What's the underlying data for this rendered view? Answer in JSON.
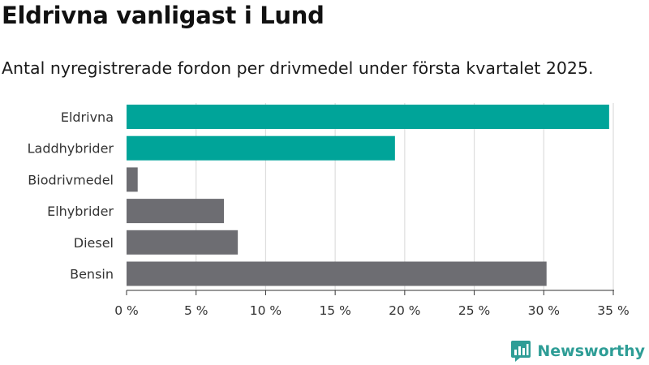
{
  "title": "Eldrivna vanligast i Lund",
  "subtitle": "Antal nyregistrerade fordon per drivmedel under första kvartalet 2025.",
  "brand": {
    "name": "Newsworthy",
    "icon": "bar-chart-logo-icon",
    "color": "#2e9d96"
  },
  "colors": {
    "highlight": "#00a499",
    "default": "#6d6d72",
    "grid": "#dddddd",
    "axis": "#333333"
  },
  "chart_data": {
    "type": "bar",
    "orientation": "horizontal",
    "categories": [
      "Eldrivna",
      "Laddhybrider",
      "Biodrivmedel",
      "Elhybrider",
      "Diesel",
      "Bensin"
    ],
    "values": [
      34.7,
      19.3,
      0.8,
      7.0,
      8.0,
      30.2
    ],
    "highlighted": [
      true,
      true,
      false,
      false,
      false,
      false
    ],
    "x_ticks": [
      0,
      5,
      10,
      15,
      20,
      25,
      30,
      35
    ],
    "x_tick_labels": [
      "0 %",
      "5 %",
      "10 %",
      "15 %",
      "20 %",
      "25 %",
      "30 %",
      "35 %"
    ],
    "xlim": [
      0,
      35
    ],
    "grid": true,
    "legend": "none"
  }
}
